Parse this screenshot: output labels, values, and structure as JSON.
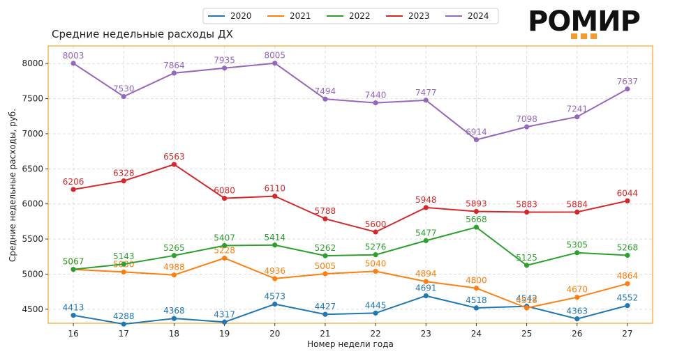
{
  "colors": {
    "frame": "#f5a623",
    "grid": "#dddddd",
    "logo_accent": "#f39c2e"
  },
  "logo": {
    "text": "РОМИР"
  },
  "chart_data": {
    "type": "line",
    "title": "Средние недельные расходы ДХ",
    "xlabel": "Номер недели года",
    "ylabel": "Средние недельные расходы, руб.",
    "x": [
      16,
      17,
      18,
      19,
      20,
      21,
      22,
      23,
      24,
      25,
      26,
      27
    ],
    "ylim": [
      4300,
      8250
    ],
    "xlim": [
      15.5,
      27.5
    ],
    "yticks": [
      4500,
      5000,
      5500,
      6000,
      6500,
      7000,
      7500,
      8000
    ],
    "grid": true,
    "legend_position": "top",
    "series": [
      {
        "name": "2020",
        "color": "#1f77b4",
        "values": [
          4413,
          4288,
          4368,
          4317,
          4573,
          4427,
          4445,
          4691,
          4518,
          4542,
          4363,
          4552
        ]
      },
      {
        "name": "2021",
        "color": "#ff7f0e",
        "values": [
          5067,
          5030,
          4988,
          5228,
          4936,
          5005,
          5040,
          4894,
          4800,
          4518,
          4670,
          4864
        ]
      },
      {
        "name": "2022",
        "color": "#2ca02c",
        "values": [
          5067,
          5143,
          5265,
          5407,
          5414,
          5262,
          5276,
          5477,
          5668,
          5125,
          5305,
          5268
        ]
      },
      {
        "name": "2023",
        "color": "#d62728",
        "values": [
          6206,
          6328,
          6563,
          6080,
          6110,
          5788,
          5600,
          5948,
          5893,
          5883,
          5884,
          6044
        ]
      },
      {
        "name": "2024",
        "color": "#9467bd",
        "values": [
          8003,
          7530,
          7864,
          7935,
          8005,
          7494,
          7440,
          7477,
          6914,
          7098,
          7241,
          7637
        ]
      }
    ]
  }
}
